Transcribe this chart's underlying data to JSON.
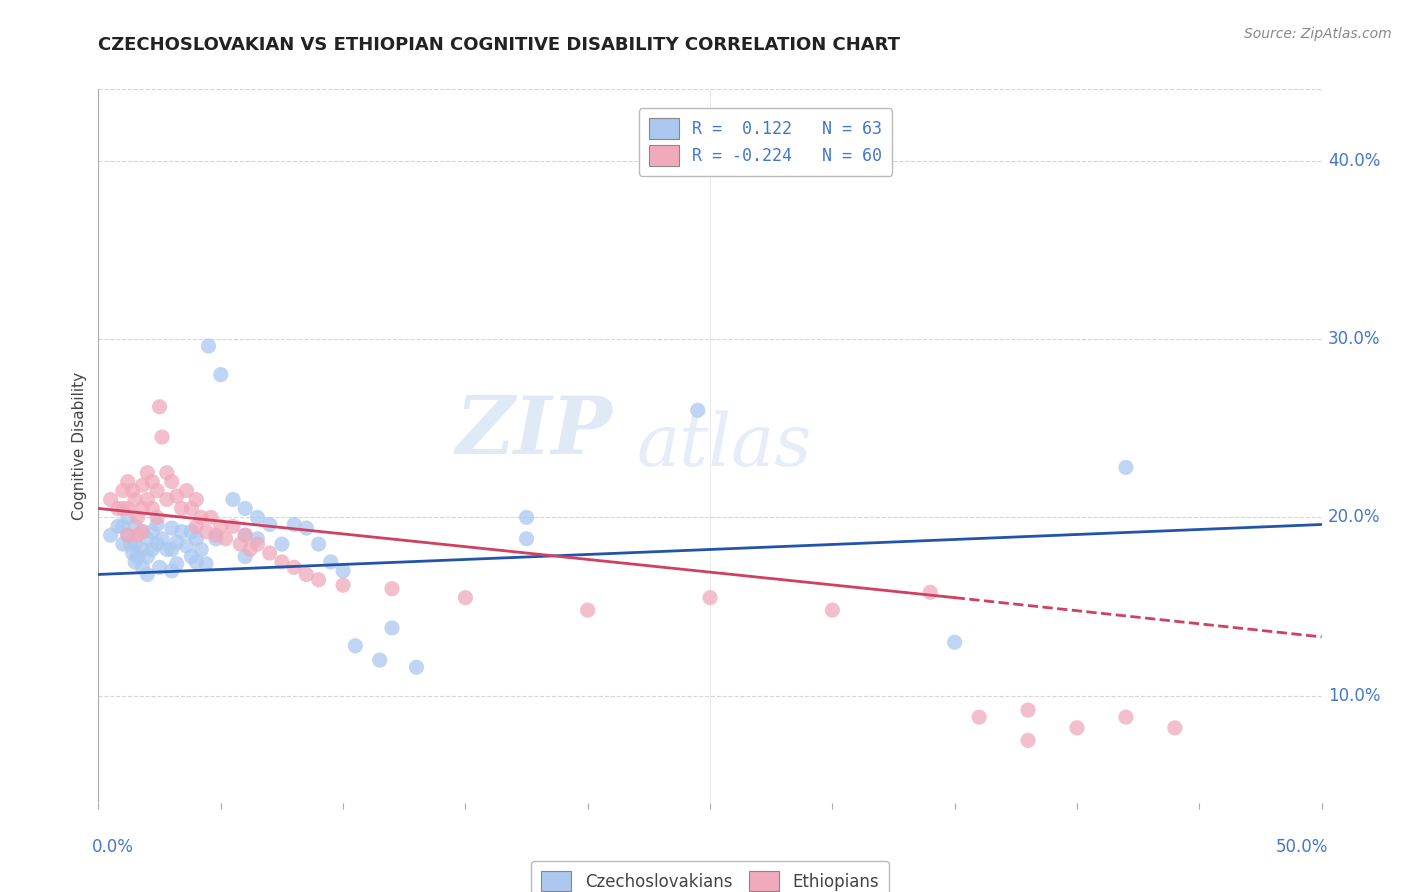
{
  "title": "CZECHOSLOVAKIAN VS ETHIOPIAN COGNITIVE DISABILITY CORRELATION CHART",
  "source": "Source: ZipAtlas.com",
  "ylabel": "Cognitive Disability",
  "xlim": [
    0.0,
    0.5
  ],
  "ylim": [
    0.04,
    0.44
  ],
  "yticks": [
    0.1,
    0.2,
    0.3,
    0.4
  ],
  "ytick_labels": [
    "10.0%",
    "20.0%",
    "30.0%",
    "40.0%"
  ],
  "xticks": [
    0.0,
    0.05,
    0.1,
    0.15,
    0.2,
    0.25,
    0.3,
    0.35,
    0.4,
    0.45,
    0.5
  ],
  "czech_color": "#aac8f0",
  "ethiopian_color": "#f0aabb",
  "czech_line_color": "#2255aa",
  "ethiopian_line_color": "#d04060",
  "watermark_zip": "ZIP",
  "watermark_atlas": "atlas",
  "czech_scatter": [
    [
      0.005,
      0.19
    ],
    [
      0.008,
      0.195
    ],
    [
      0.01,
      0.195
    ],
    [
      0.01,
      0.185
    ],
    [
      0.012,
      0.2
    ],
    [
      0.012,
      0.19
    ],
    [
      0.013,
      0.185
    ],
    [
      0.014,
      0.18
    ],
    [
      0.015,
      0.195
    ],
    [
      0.015,
      0.185
    ],
    [
      0.015,
      0.175
    ],
    [
      0.016,
      0.178
    ],
    [
      0.018,
      0.192
    ],
    [
      0.018,
      0.182
    ],
    [
      0.018,
      0.172
    ],
    [
      0.02,
      0.188
    ],
    [
      0.02,
      0.178
    ],
    [
      0.02,
      0.168
    ],
    [
      0.022,
      0.192
    ],
    [
      0.022,
      0.182
    ],
    [
      0.024,
      0.196
    ],
    [
      0.024,
      0.185
    ],
    [
      0.025,
      0.172
    ],
    [
      0.026,
      0.188
    ],
    [
      0.028,
      0.182
    ],
    [
      0.03,
      0.194
    ],
    [
      0.03,
      0.182
    ],
    [
      0.03,
      0.17
    ],
    [
      0.032,
      0.186
    ],
    [
      0.032,
      0.174
    ],
    [
      0.034,
      0.192
    ],
    [
      0.036,
      0.184
    ],
    [
      0.038,
      0.192
    ],
    [
      0.038,
      0.178
    ],
    [
      0.04,
      0.188
    ],
    [
      0.04,
      0.175
    ],
    [
      0.042,
      0.182
    ],
    [
      0.044,
      0.174
    ],
    [
      0.045,
      0.296
    ],
    [
      0.048,
      0.188
    ],
    [
      0.05,
      0.28
    ],
    [
      0.055,
      0.21
    ],
    [
      0.06,
      0.205
    ],
    [
      0.06,
      0.19
    ],
    [
      0.06,
      0.178
    ],
    [
      0.065,
      0.2
    ],
    [
      0.065,
      0.188
    ],
    [
      0.07,
      0.196
    ],
    [
      0.075,
      0.185
    ],
    [
      0.08,
      0.196
    ],
    [
      0.085,
      0.194
    ],
    [
      0.09,
      0.185
    ],
    [
      0.095,
      0.175
    ],
    [
      0.1,
      0.17
    ],
    [
      0.105,
      0.128
    ],
    [
      0.115,
      0.12
    ],
    [
      0.12,
      0.138
    ],
    [
      0.13,
      0.116
    ],
    [
      0.175,
      0.2
    ],
    [
      0.175,
      0.188
    ],
    [
      0.245,
      0.26
    ],
    [
      0.35,
      0.13
    ],
    [
      0.42,
      0.228
    ]
  ],
  "ethiopian_scatter": [
    [
      0.005,
      0.21
    ],
    [
      0.008,
      0.205
    ],
    [
      0.01,
      0.215
    ],
    [
      0.01,
      0.205
    ],
    [
      0.012,
      0.22
    ],
    [
      0.012,
      0.205
    ],
    [
      0.012,
      0.19
    ],
    [
      0.014,
      0.215
    ],
    [
      0.015,
      0.21
    ],
    [
      0.016,
      0.2
    ],
    [
      0.016,
      0.19
    ],
    [
      0.018,
      0.218
    ],
    [
      0.018,
      0.205
    ],
    [
      0.018,
      0.192
    ],
    [
      0.02,
      0.225
    ],
    [
      0.02,
      0.21
    ],
    [
      0.022,
      0.22
    ],
    [
      0.022,
      0.205
    ],
    [
      0.024,
      0.215
    ],
    [
      0.024,
      0.2
    ],
    [
      0.025,
      0.262
    ],
    [
      0.026,
      0.245
    ],
    [
      0.028,
      0.225
    ],
    [
      0.028,
      0.21
    ],
    [
      0.03,
      0.22
    ],
    [
      0.032,
      0.212
    ],
    [
      0.034,
      0.205
    ],
    [
      0.036,
      0.215
    ],
    [
      0.038,
      0.205
    ],
    [
      0.04,
      0.21
    ],
    [
      0.04,
      0.195
    ],
    [
      0.042,
      0.2
    ],
    [
      0.044,
      0.192
    ],
    [
      0.046,
      0.2
    ],
    [
      0.048,
      0.19
    ],
    [
      0.05,
      0.195
    ],
    [
      0.052,
      0.188
    ],
    [
      0.055,
      0.195
    ],
    [
      0.058,
      0.185
    ],
    [
      0.06,
      0.19
    ],
    [
      0.062,
      0.182
    ],
    [
      0.065,
      0.185
    ],
    [
      0.07,
      0.18
    ],
    [
      0.075,
      0.175
    ],
    [
      0.08,
      0.172
    ],
    [
      0.085,
      0.168
    ],
    [
      0.09,
      0.165
    ],
    [
      0.1,
      0.162
    ],
    [
      0.12,
      0.16
    ],
    [
      0.15,
      0.155
    ],
    [
      0.2,
      0.148
    ],
    [
      0.25,
      0.155
    ],
    [
      0.3,
      0.148
    ],
    [
      0.34,
      0.158
    ],
    [
      0.36,
      0.088
    ],
    [
      0.38,
      0.092
    ],
    [
      0.4,
      0.082
    ],
    [
      0.42,
      0.088
    ],
    [
      0.44,
      0.082
    ],
    [
      0.38,
      0.075
    ]
  ],
  "czech_line": {
    "x0": 0.0,
    "y0": 0.168,
    "x1": 0.5,
    "y1": 0.196
  },
  "ethiopian_line_solid": {
    "x0": 0.0,
    "y0": 0.205,
    "x1": 0.35,
    "y1": 0.155
  },
  "ethiopian_line_dash": {
    "x0": 0.35,
    "y0": 0.155,
    "x1": 0.5,
    "y1": 0.133
  },
  "background_color": "#ffffff",
  "grid_color": "#cccccc"
}
